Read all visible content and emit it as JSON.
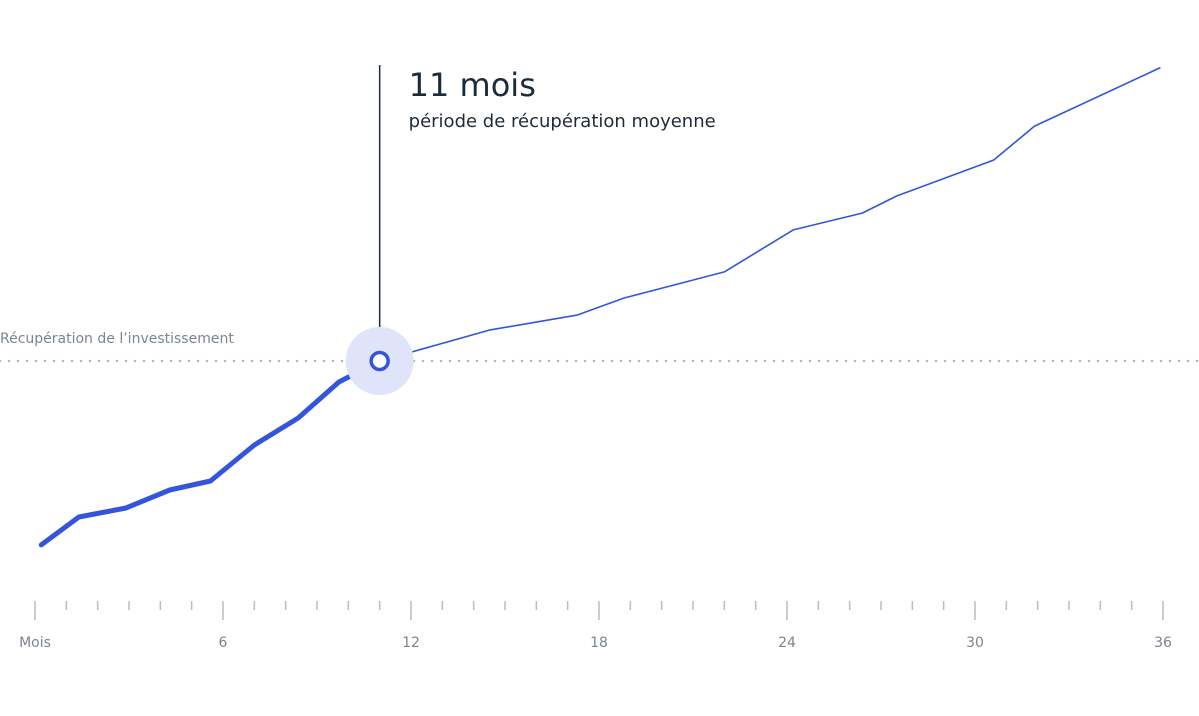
{
  "chart_data": {
    "type": "line",
    "color": "#3455db",
    "x": [
      0.2,
      1.4,
      2.9,
      4.3,
      5.6,
      7.0,
      8.4,
      9.7,
      11,
      14.5,
      17.3,
      18.8,
      22.0,
      24.2,
      26.4,
      27.5,
      30.6,
      31.9,
      35.9
    ],
    "values": [
      -61.3,
      -52,
      -49,
      -43,
      -40,
      -28,
      -19,
      -7,
      0,
      10.3,
      15.3,
      21,
      29.7,
      43.7,
      49.3,
      55,
      67,
      78.3,
      97.7
    ],
    "xlim": [
      0,
      36
    ],
    "ylim": [
      -80,
      100
    ],
    "xticks": [
      {
        "value": 0,
        "label": "Mois"
      },
      6,
      12,
      18,
      24,
      30,
      36
    ],
    "xminor": 1,
    "payback": {
      "value": 0,
      "label": "Récupération de l’investissement"
    },
    "annotation": {
      "x": 11,
      "title": "11 mois",
      "text": "période de récupération moyenne"
    }
  }
}
